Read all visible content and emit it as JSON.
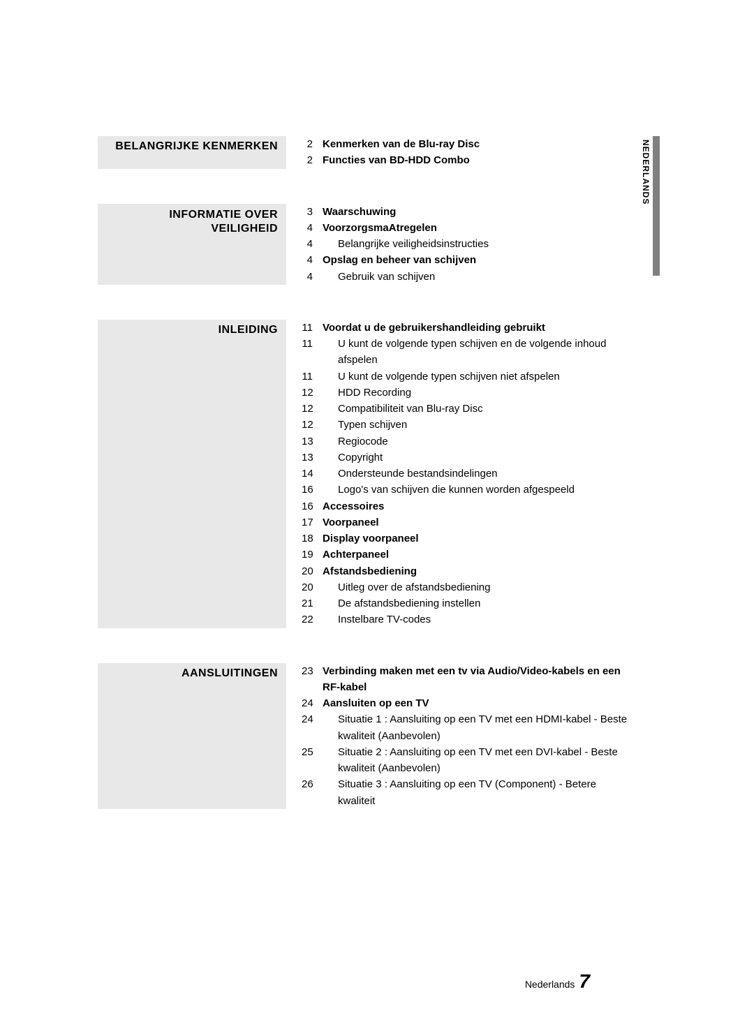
{
  "side_label": "NEDERLANDS",
  "sections": [
    {
      "title": "BELANGRIJKE KENMERKEN",
      "items": [
        {
          "page": "2",
          "text": "Kenmerken van de Blu-ray Disc",
          "bold": true,
          "indent": false
        },
        {
          "page": "2",
          "text": "Functies van BD-HDD Combo",
          "bold": true,
          "indent": false
        }
      ]
    },
    {
      "title": "INFORMATIE OVER VEILIGHEID",
      "items": [
        {
          "page": "3",
          "text": "Waarschuwing",
          "bold": true,
          "indent": false
        },
        {
          "page": "4",
          "text": "VoorzorgsmaAtregelen",
          "bold": true,
          "indent": false
        },
        {
          "page": "4",
          "text": "Belangrijke veiligheidsinstructies",
          "bold": false,
          "indent": true
        },
        {
          "page": "4",
          "text": "Opslag en beheer van schijven",
          "bold": true,
          "indent": false
        },
        {
          "page": "4",
          "text": "Gebruik van schijven",
          "bold": false,
          "indent": true
        }
      ]
    },
    {
      "title": "INLEIDING",
      "items": [
        {
          "page": "11",
          "text": "Voordat u de gebruikershandleiding gebruikt",
          "bold": true,
          "indent": false
        },
        {
          "page": "11",
          "text": "U kunt de volgende typen schijven en de volgende inhoud afspelen",
          "bold": false,
          "indent": true
        },
        {
          "page": "11",
          "text": "U kunt de volgende typen schijven niet afspelen",
          "bold": false,
          "indent": true
        },
        {
          "page": "12",
          "text": "HDD Recording",
          "bold": false,
          "indent": true
        },
        {
          "page": "12",
          "text": "Compatibiliteit van Blu-ray Disc",
          "bold": false,
          "indent": true
        },
        {
          "page": "12",
          "text": "Typen schijven",
          "bold": false,
          "indent": true
        },
        {
          "page": "13",
          "text": "Regiocode",
          "bold": false,
          "indent": true
        },
        {
          "page": "13",
          "text": "Copyright",
          "bold": false,
          "indent": true
        },
        {
          "page": "14",
          "text": "Ondersteunde bestandsindelingen",
          "bold": false,
          "indent": true
        },
        {
          "page": "16",
          "text": "Logo's van schijven die kunnen worden afgespeeld",
          "bold": false,
          "indent": true
        },
        {
          "page": "16",
          "text": "Accessoires",
          "bold": true,
          "indent": false
        },
        {
          "page": "17",
          "text": "Voorpaneel",
          "bold": true,
          "indent": false
        },
        {
          "page": "18",
          "text": "Display voorpaneel",
          "bold": true,
          "indent": false
        },
        {
          "page": "19",
          "text": "Achterpaneel",
          "bold": true,
          "indent": false
        },
        {
          "page": "20",
          "text": "Afstandsbediening",
          "bold": true,
          "indent": false
        },
        {
          "page": "20",
          "text": "Uitleg over de afstandsbediening",
          "bold": false,
          "indent": true
        },
        {
          "page": "21",
          "text": "De afstandsbediening instellen",
          "bold": false,
          "indent": true
        },
        {
          "page": "22",
          "text": "Instelbare TV-codes",
          "bold": false,
          "indent": true
        }
      ]
    },
    {
      "title": "AANSLUITINGEN",
      "items": [
        {
          "page": "23",
          "text": "Verbinding maken met een tv via Audio/Video-kabels en een RF-kabel",
          "bold": true,
          "indent": false
        },
        {
          "page": "24",
          "text": "Aansluiten op een TV",
          "bold": true,
          "indent": false
        },
        {
          "page": "24",
          "text": "Situatie 1 : Aansluiting op een TV met een HDMI-kabel - Beste kwaliteit (Aanbevolen)",
          "bold": false,
          "indent": true
        },
        {
          "page": "25",
          "text": "Situatie 2 : Aansluiting op een TV met een DVI-kabel - Beste kwaliteit (Aanbevolen)",
          "bold": false,
          "indent": true
        },
        {
          "page": "26",
          "text": "Situatie 3 : Aansluiting op een TV (Component) - Betere kwaliteit",
          "bold": false,
          "indent": true
        }
      ]
    }
  ],
  "footer": {
    "text": "Nederlands",
    "page": "7"
  }
}
